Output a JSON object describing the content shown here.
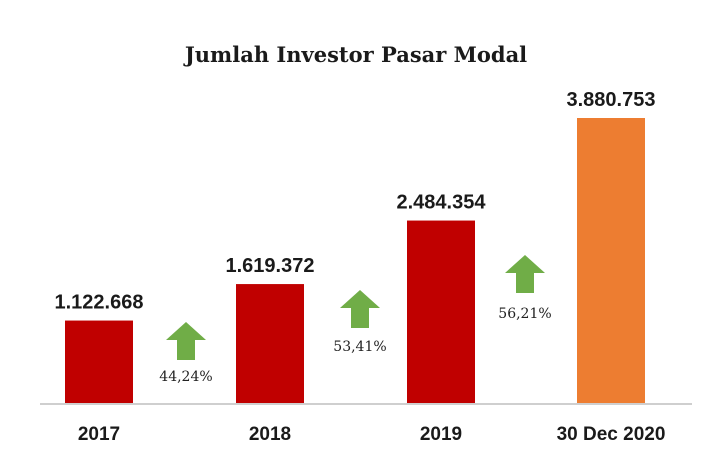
{
  "chart_data": {
    "type": "bar",
    "title": "Jumlah Investor Pasar Modal",
    "xlabel": "",
    "ylabel": "",
    "ylim": [
      0,
      4000000
    ],
    "grid": false,
    "legend": "none",
    "categories": [
      "2017",
      "2018",
      "2019",
      "30 Dec 2020"
    ],
    "values": [
      1122668,
      1619372,
      2484354,
      3880753
    ],
    "value_labels": [
      "1.122.668",
      "1.619.372",
      "2.484.354",
      "3.880.753"
    ],
    "bar_colors": [
      "#c00000",
      "#c00000",
      "#c00000",
      "#ed7d31"
    ],
    "growth": [
      {
        "label": "44,24%",
        "between": [
          0,
          1
        ]
      },
      {
        "label": "53,41%",
        "between": [
          1,
          2
        ]
      },
      {
        "label": "56,21%",
        "between": [
          2,
          3
        ]
      }
    ],
    "arrow_color": "#70ad47",
    "axis_color": "#bfbfbf"
  }
}
